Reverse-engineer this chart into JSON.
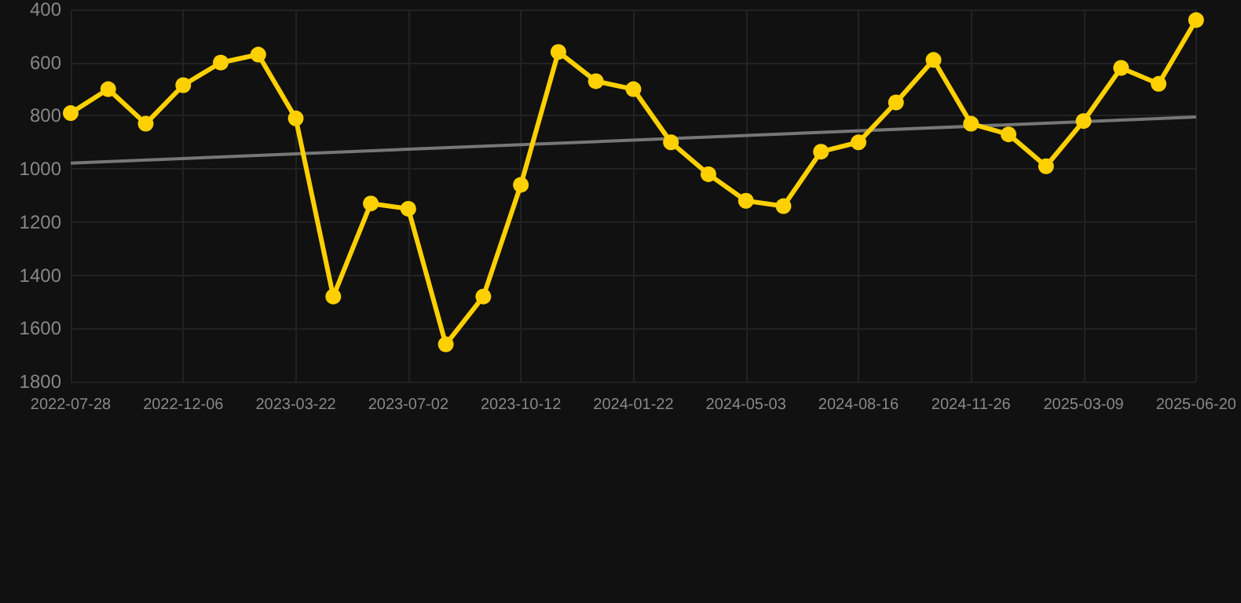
{
  "chart_data": {
    "type": "line",
    "categories": [
      "2022-07-28",
      null,
      null,
      "2022-12-06",
      null,
      null,
      "2023-03-22",
      null,
      null,
      "2023-07-02",
      null,
      null,
      "2023-10-12",
      null,
      null,
      "2024-01-22",
      null,
      null,
      "2024-05-03",
      null,
      null,
      "2024-08-16",
      null,
      null,
      "2024-11-26",
      null,
      null,
      "2025-03-09",
      null,
      null,
      "2025-06-20"
    ],
    "series": [
      {
        "color": "#ffd000",
        "marker": "circle",
        "values": [
          790,
          700,
          830,
          685,
          600,
          570,
          810,
          1480,
          1130,
          1150,
          1660,
          1480,
          1060,
          560,
          670,
          700,
          900,
          1020,
          1120,
          1140,
          935,
          900,
          750,
          590,
          830,
          870,
          990,
          820,
          620,
          680,
          440
        ]
      },
      {
        "type": "line",
        "color": "#777777",
        "marker": "none",
        "values": [
          978,
          null,
          null,
          null,
          null,
          null,
          null,
          null,
          null,
          null,
          null,
          null,
          null,
          null,
          null,
          null,
          null,
          null,
          null,
          null,
          null,
          null,
          null,
          null,
          null,
          null,
          null,
          null,
          null,
          null,
          805
        ]
      }
    ],
    "ylim": [
      1800,
      400
    ],
    "yticks": [
      400,
      600,
      800,
      1000,
      1200,
      1400,
      1600,
      1800
    ],
    "grid": true
  }
}
